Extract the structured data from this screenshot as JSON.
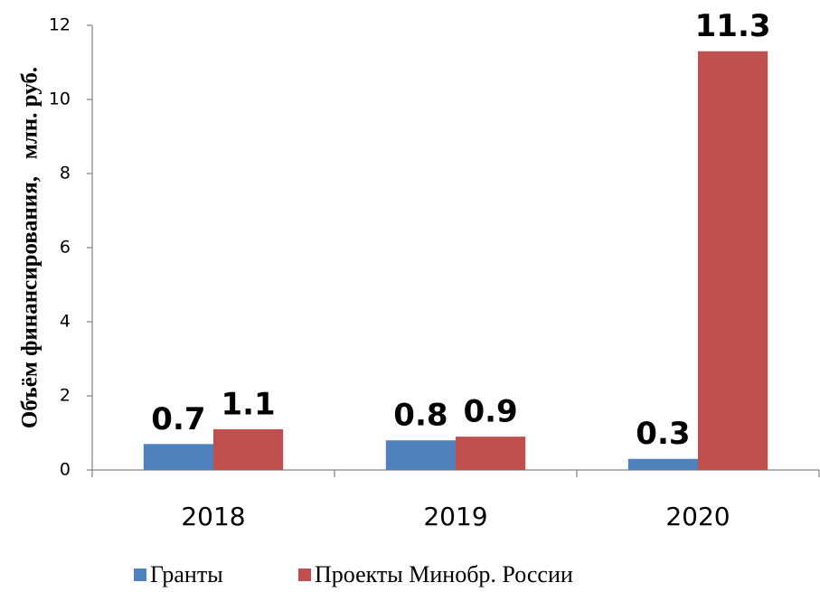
{
  "chart_data": {
    "type": "bar",
    "y_label": "Объём финансирования,   млн. руб.",
    "categories": [
      "2018",
      "2019",
      "2020"
    ],
    "series": [
      {
        "name": "Гранты",
        "color": "#4f81bd",
        "values": [
          0.7,
          0.8,
          0.3
        ]
      },
      {
        "name": "Проекты Минобр. России",
        "color": "#c0504d",
        "values": [
          1.1,
          0.9,
          11.3
        ]
      }
    ],
    "ylim": [
      0,
      12
    ],
    "yticks": [
      0,
      2,
      4,
      6,
      8,
      10,
      12
    ],
    "grid": false,
    "legend": "bottom"
  }
}
